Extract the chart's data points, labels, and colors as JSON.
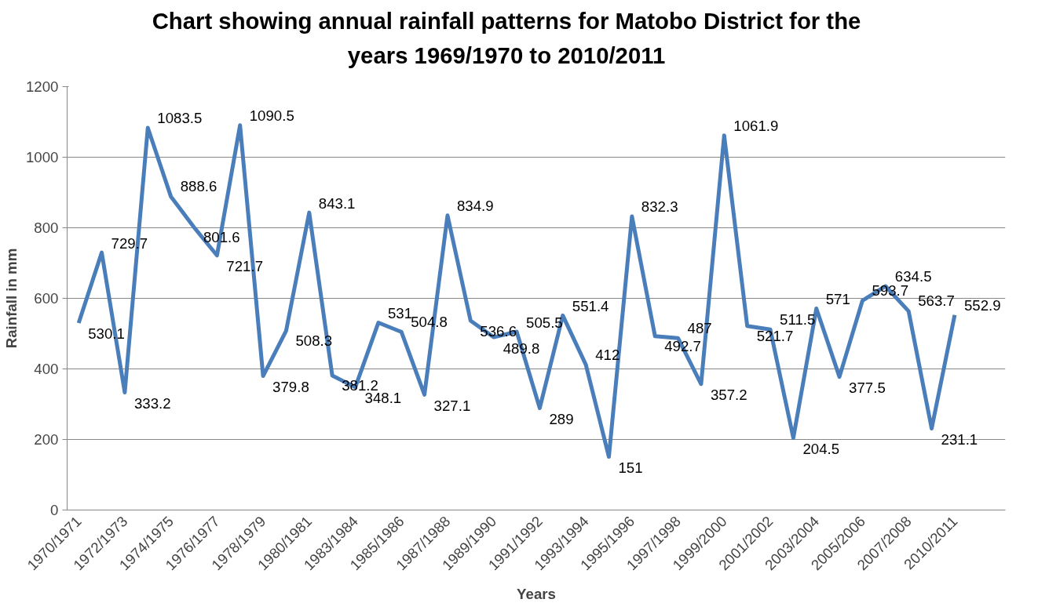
{
  "chart_data": {
    "type": "line",
    "title": "Chart showing annual rainfall patterns for Matobo District for the years 1969/1970 to 2010/2011",
    "xlabel": "Years",
    "ylabel": "Rainfall in mm",
    "categories": [
      "1970/1971",
      null,
      "1972/1973",
      null,
      "1974/1975",
      null,
      "1976/1977",
      null,
      "1978/1979",
      null,
      "1980/1981",
      null,
      "1983/1984",
      null,
      "1985/1986",
      null,
      "1987/1988",
      null,
      "1989/1990",
      null,
      "1991/1992",
      null,
      "1993/1994",
      null,
      "1995/1996",
      null,
      "1997/1998",
      null,
      "1999/2000",
      null,
      "2001/2002",
      null,
      "2003/2004",
      null,
      "2005/2006",
      null,
      "2007/2008",
      null,
      "2010/2011"
    ],
    "series": [
      {
        "color": "#4a7ebb",
        "values": [
          530.1,
          729.7,
          333.2,
          1083.5,
          888.6,
          801.6,
          721.7,
          1090.5,
          379.8,
          508.3,
          843.1,
          381.2,
          348.1,
          531,
          504.8,
          327.1,
          834.9,
          536.6,
          489.8,
          505.5,
          289,
          551.4,
          412,
          151,
          832.3,
          492.7,
          487,
          357.2,
          1061.9,
          521.7,
          511.5,
          204.5,
          571,
          377.5,
          593.7,
          634.5,
          563.7,
          231.1,
          552.9
        ]
      }
    ],
    "ylim": [
      0,
      1200
    ],
    "yticks": [
      0,
      200,
      400,
      600,
      800,
      1000,
      1200
    ],
    "grid": "y",
    "marker": "none",
    "line_style": "solid",
    "data_labels": true
  }
}
